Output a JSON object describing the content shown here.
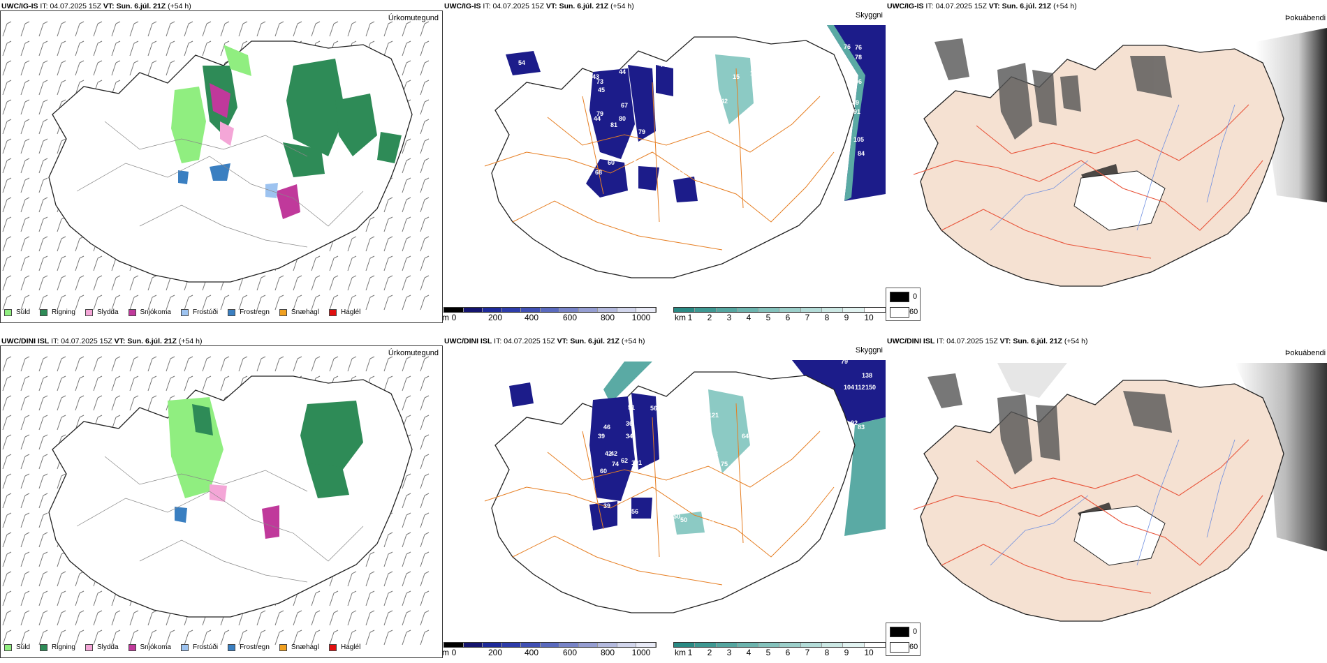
{
  "rows": [
    {
      "model": "UWC/IG-IS",
      "it_label": "IT:",
      "it_value": "04.07.2025 15Z",
      "vt_label": "VT:",
      "vt_value": "Sun. 6.júl. 21Z",
      "lead": "(+54 h)",
      "panels": [
        {
          "title": "Úrkomutegund"
        },
        {
          "title": "Skyggni"
        },
        {
          "title": "Þokuábendi"
        }
      ],
      "visibility_labels": [
        "78",
        "76",
        "76",
        "78",
        "106",
        "89",
        "91",
        "105",
        "84",
        "43",
        "44",
        "45",
        "67",
        "80",
        "79",
        "73",
        "44",
        "81",
        "79",
        "60",
        "68",
        "41",
        "43",
        "26",
        "15",
        "10",
        "42",
        "76",
        "44",
        "54",
        "12"
      ]
    },
    {
      "model": "UWC/DINI ISL",
      "it_label": "IT:",
      "it_value": "04.07.2025 15Z",
      "vt_label": "VT:",
      "vt_value": "Sun. 6.júl. 21Z",
      "lead": "(+54 h)",
      "panels": [
        {
          "title": "Úrkomutegund"
        },
        {
          "title": "Skyggni"
        },
        {
          "title": "Þokuábendi"
        }
      ],
      "visibility_labels": [
        "119",
        "79",
        "138",
        "104",
        "112",
        "150",
        "83",
        "92",
        "58",
        "50",
        "121",
        "38",
        "75",
        "67",
        "46",
        "39",
        "36",
        "51",
        "56",
        "34",
        "42",
        "62",
        "42",
        "74",
        "101",
        "60",
        "39",
        "56",
        "52",
        "58",
        "50",
        "77",
        "54",
        "64"
      ]
    }
  ],
  "precip_legend": [
    {
      "label": "Súld",
      "color": "#90ee80"
    },
    {
      "label": "Rigning",
      "color": "#2e8b57"
    },
    {
      "label": "Slydda",
      "color": "#f4a6d7"
    },
    {
      "label": "Snjókoma",
      "color": "#c0399b"
    },
    {
      "label": "Frostúði",
      "color": "#9dc3f0"
    },
    {
      "label": "Frostregn",
      "color": "#3a7fc1"
    },
    {
      "label": "Snæhagl",
      "color": "#f0a020"
    },
    {
      "label": "Haglél",
      "color": "#e01010"
    }
  ],
  "elevation_colorbar": {
    "unit": "m",
    "ticks": [
      "0",
      "200",
      "400",
      "600",
      "800",
      "1000"
    ],
    "colors": [
      "#000000",
      "#14146e",
      "#1e2a9a",
      "#2d3caa",
      "#4050b4",
      "#5a6abe",
      "#7884c8",
      "#969ed2",
      "#b4bade",
      "#d2d6ec",
      "#e8eaf6"
    ]
  },
  "visibility_colorbar": {
    "unit": "km",
    "ticks": [
      "1",
      "2",
      "3",
      "4",
      "5",
      "6",
      "7",
      "8",
      "9",
      "10"
    ],
    "colors": [
      "#2a8a84",
      "#3e9892",
      "#55a6a0",
      "#6cb4ae",
      "#84c2bc",
      "#9ccfca",
      "#b4dcd8",
      "#cce8e4",
      "#e2f3f1",
      "#ffffff"
    ]
  },
  "fog_legend": [
    {
      "label": "0",
      "color": "#000000"
    },
    {
      "label": "60",
      "color": "#ffffff"
    }
  ],
  "colors": {
    "land_fog": "#f5e1d2",
    "roads": "#e67e22",
    "fog_roads": "#e8543a",
    "rivers": "#6f8fe0",
    "outline": "#222222"
  }
}
